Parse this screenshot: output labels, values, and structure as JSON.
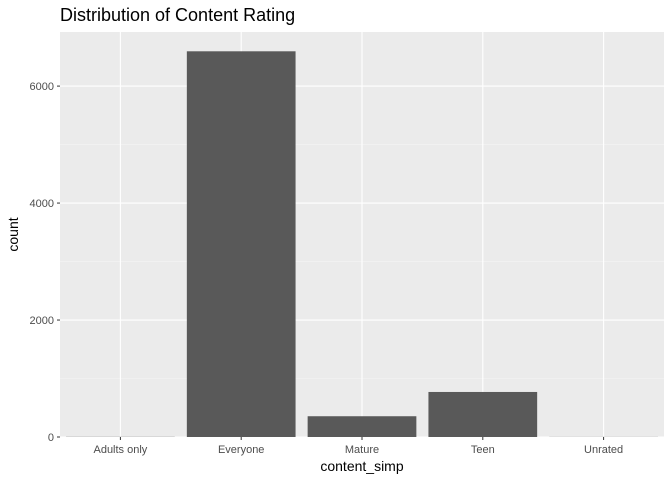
{
  "chart_data": {
    "type": "bar",
    "title": "Distribution of Content Rating",
    "xlabel": "content_simp",
    "ylabel": "count",
    "categories": [
      "Adults only",
      "Everyone",
      "Mature",
      "Teen",
      "Unrated"
    ],
    "values": [
      3,
      6595,
      355,
      770,
      2
    ],
    "ylim": [
      0,
      6925
    ],
    "yticks": [
      0,
      2000,
      4000,
      6000
    ],
    "ytick_labels": [
      "0",
      "2000",
      "4000",
      "6000"
    ],
    "grid": true,
    "legend": "none",
    "colors": {
      "bar": "#595959",
      "panel_background": "#ebebeb",
      "grid_major": "#ffffff",
      "grid_minor": "#f5f5f5",
      "tick": "#333333"
    }
  }
}
